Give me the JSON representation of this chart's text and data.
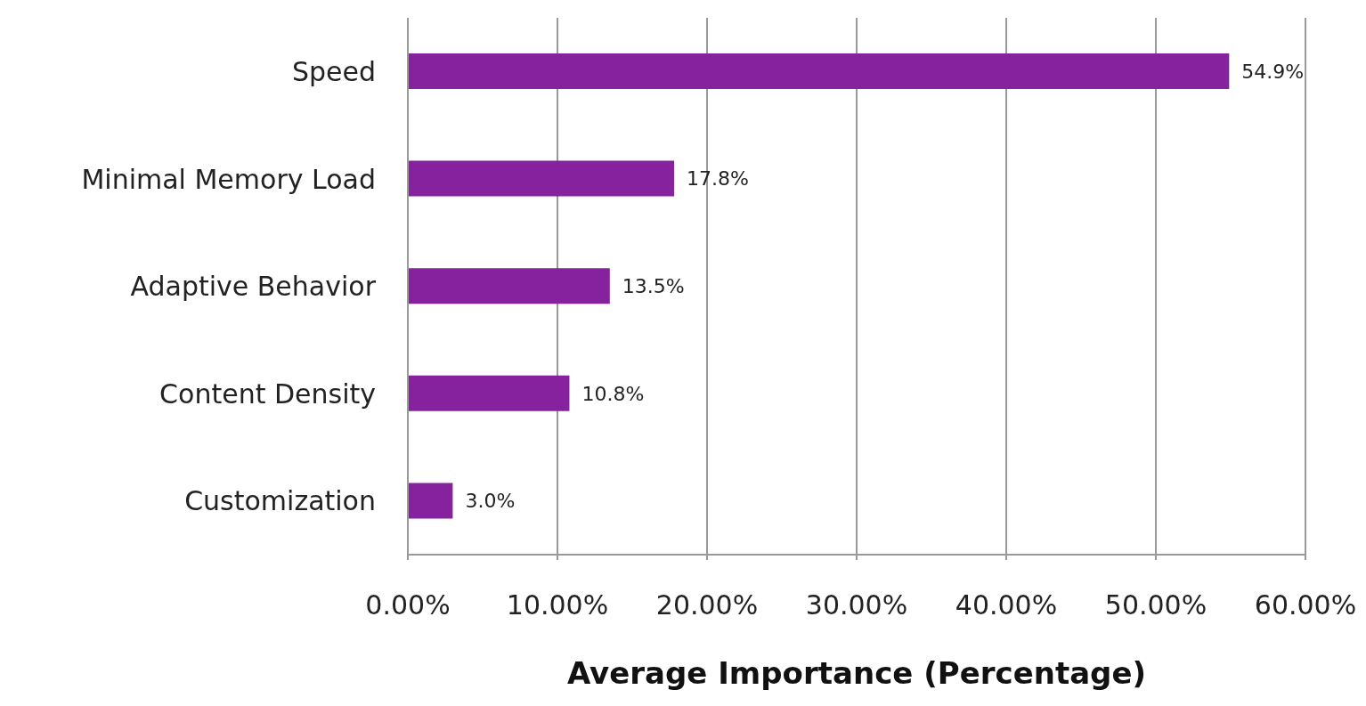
{
  "chart_data": {
    "type": "bar",
    "orientation": "horizontal",
    "xlabel": "Average Importance (Percentage)",
    "categories": [
      "Speed",
      "Minimal Memory Load",
      "Adaptive Behavior",
      "Content Density",
      "Customization"
    ],
    "values": [
      54.9,
      17.8,
      13.5,
      10.8,
      3.0
    ],
    "value_labels": [
      "54.9%",
      "17.8%",
      "13.5%",
      "10.8%",
      "3.0%"
    ],
    "color": "#86229e",
    "xlim": [
      0,
      60
    ],
    "xticks": [
      {
        "value": 0,
        "label": "0.00%"
      },
      {
        "value": 10,
        "label": "10.00%"
      },
      {
        "value": 20,
        "label": "20.00%"
      },
      {
        "value": 30,
        "label": "30.00%"
      },
      {
        "value": 40,
        "label": "40.00%"
      },
      {
        "value": 50,
        "label": "50.00%"
      },
      {
        "value": 60,
        "label": "60.00%"
      }
    ],
    "grid": "x",
    "legend": false
  }
}
